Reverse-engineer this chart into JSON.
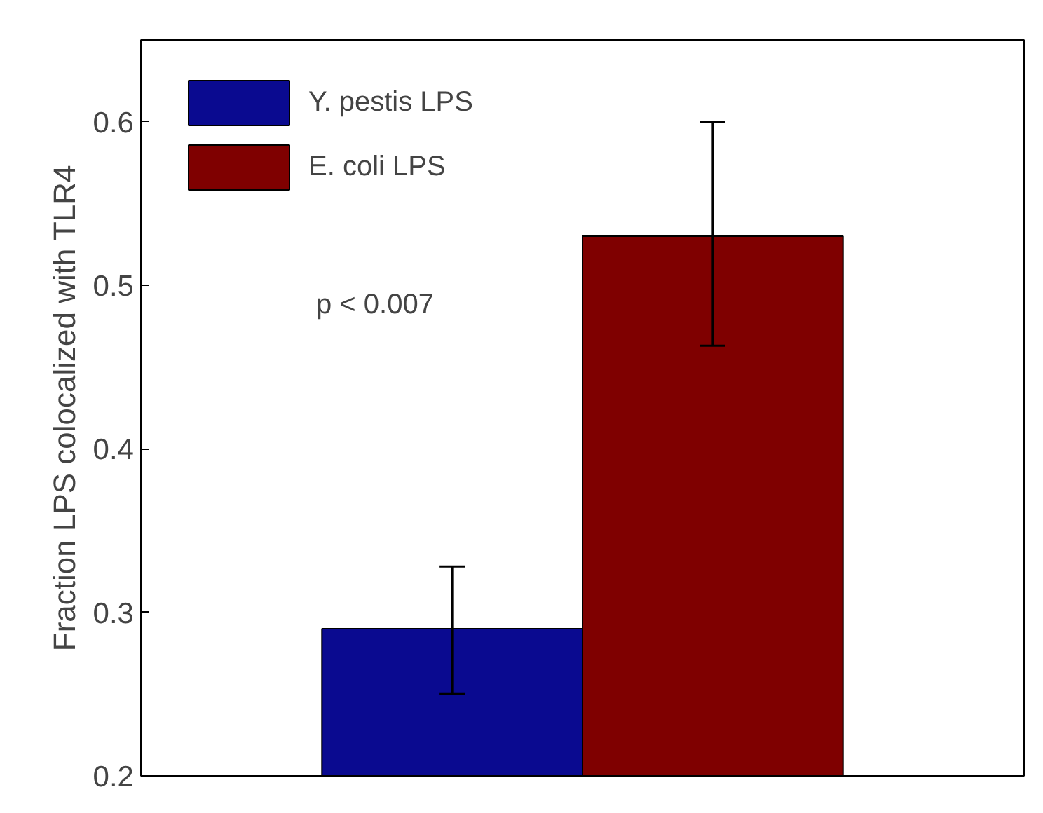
{
  "chart_data": {
    "type": "bar",
    "ylabel": "Fraction LPS colocalized with TLR4",
    "categories": [
      null
    ],
    "series": [
      {
        "name": "Y. pestis LPS",
        "color": "#0a0a90",
        "values": [
          0.29
        ],
        "errors": [
          [
            0.25,
            0.328
          ]
        ]
      },
      {
        "name": "E. coli LPS",
        "color": "#7f0000",
        "values": [
          0.53
        ],
        "errors": [
          [
            0.463,
            0.6
          ]
        ]
      }
    ],
    "ylim": [
      0.2,
      0.65
    ],
    "yticks": [
      0.2,
      0.3,
      0.4,
      0.5,
      0.6
    ],
    "tick_labels": "y",
    "grid": false,
    "legend": "top left",
    "annotations": [
      "p < 0.007"
    ]
  }
}
